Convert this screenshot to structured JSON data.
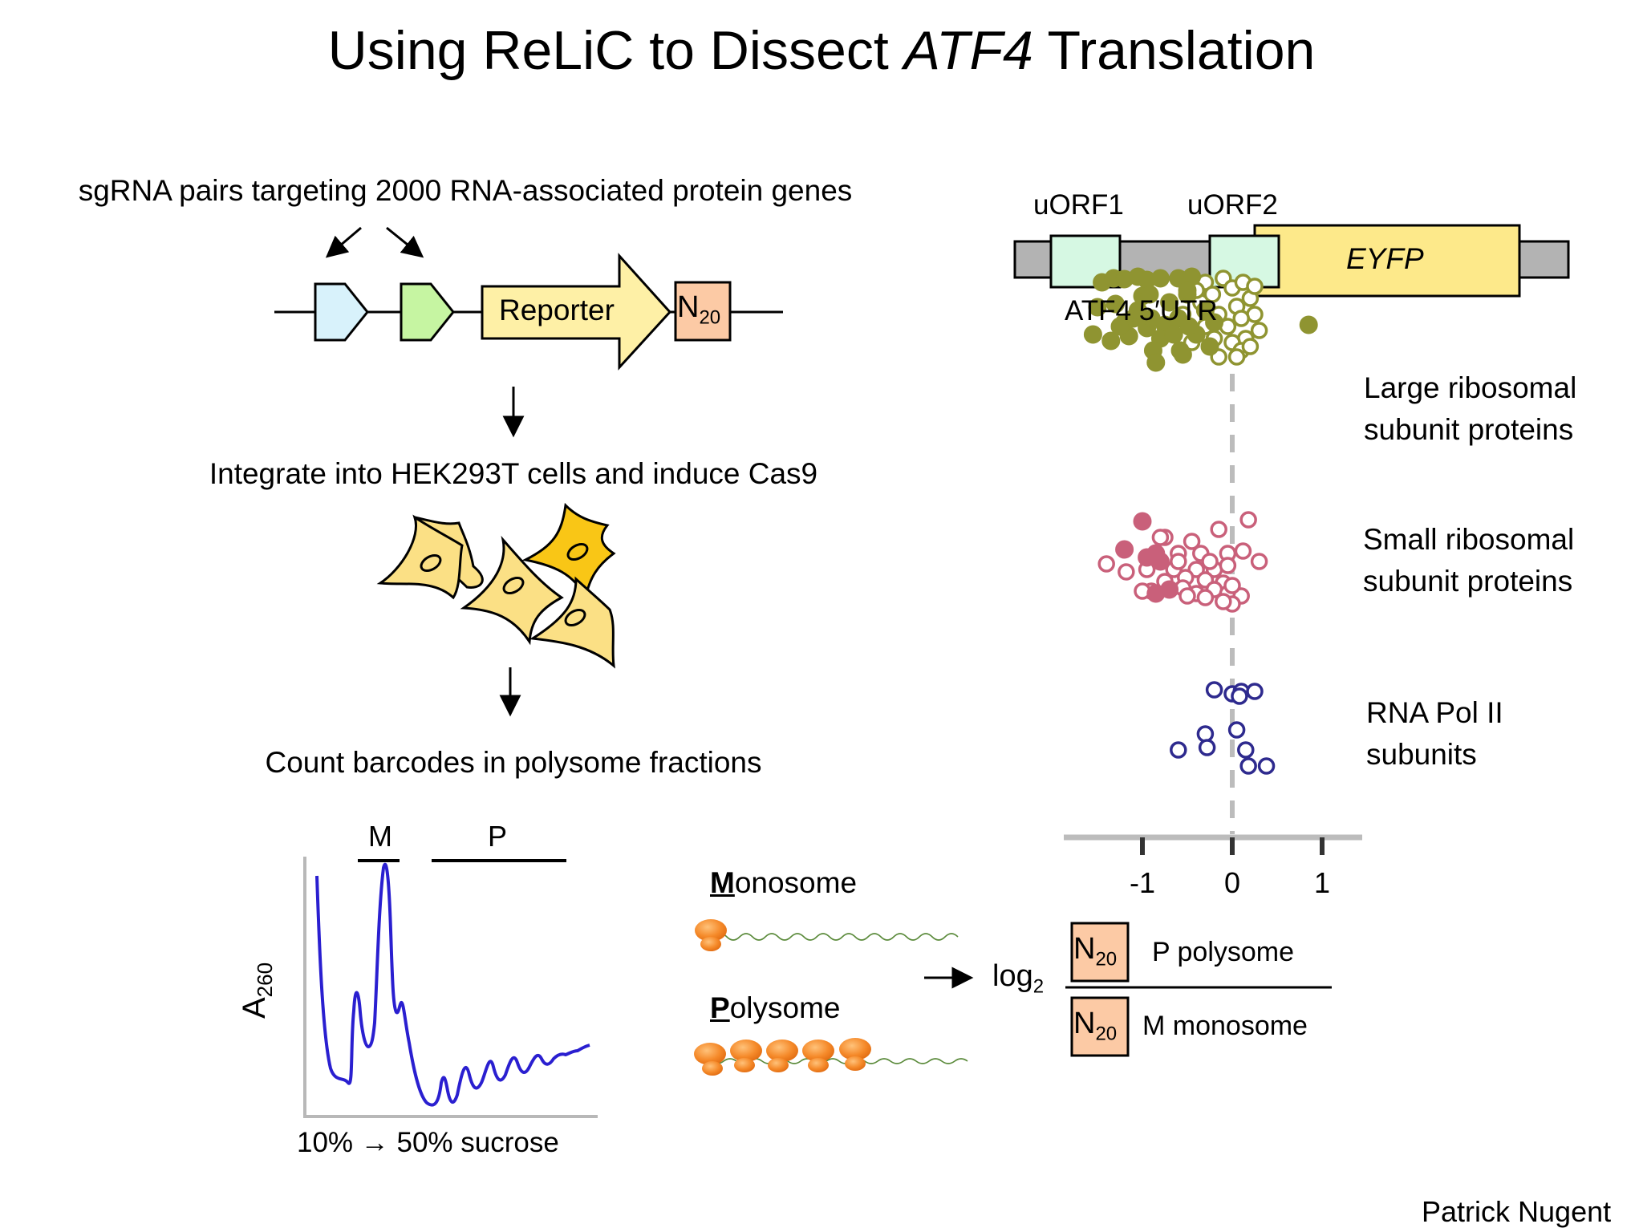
{
  "title": {
    "prefix": "Using ReLiC to Dissect ",
    "gene": "ATF4",
    "suffix": " Translation"
  },
  "steps": {
    "library": "sgRNA pairs targeting 2000 RNA-associated protein genes",
    "integrate": "Integrate into HEK293T cells and induce Cas9",
    "count": "Count barcodes in polysome fractions"
  },
  "construct": {
    "reporter": "Reporter",
    "barcode": "N",
    "barcode_sub": "20"
  },
  "profile": {
    "ylabel": "A",
    "ylabel_sub": "260",
    "xlabel": "10% → 50% sucrose",
    "monosome_mark": "M",
    "polysome_mark": "P",
    "trace_color": "#2a1fd0"
  },
  "fractions": {
    "monosome_initial": "M",
    "monosome_rest": "onosome",
    "polysome_initial": "P",
    "polysome_rest": "olysome"
  },
  "formula": {
    "log": "log",
    "log_sub": "2",
    "numerator": "P polysome",
    "denominator": "M monosome"
  },
  "utr": {
    "uorf1": "uORF1",
    "uorf2": "uORF2",
    "eyfp": "EYFP",
    "utr_label": "ATF4 5′UTR"
  },
  "chart_data": {
    "type": "scatter",
    "xlim": [
      -2.0,
      1.4
    ],
    "ticks": [
      -1,
      0,
      1
    ],
    "tick_labels": [
      "-1",
      "0",
      "1"
    ],
    "reference_line_x": 0,
    "series": [
      {
        "name": "Large ribosomal subunit proteins",
        "color": "#8f9431",
        "row_center_y": 397,
        "filled": [
          [
            -1.45,
            -45
          ],
          [
            -1.32,
            -50
          ],
          [
            -1.2,
            -49
          ],
          [
            -1.05,
            -52
          ],
          [
            -0.95,
            -48
          ],
          [
            -0.8,
            -50
          ],
          [
            -0.6,
            -50
          ],
          [
            -0.45,
            -52
          ],
          [
            -0.5,
            -30
          ],
          [
            -1.5,
            -14
          ],
          [
            -1.3,
            -18
          ],
          [
            -1.0,
            -28
          ],
          [
            -1.1,
            0
          ],
          [
            -0.95,
            12
          ],
          [
            -0.75,
            8
          ],
          [
            -0.6,
            0
          ],
          [
            -1.55,
            20
          ],
          [
            -1.35,
            28
          ],
          [
            -1.15,
            22
          ],
          [
            -0.8,
            25
          ],
          [
            -0.65,
            20
          ],
          [
            -0.88,
            40
          ],
          [
            -0.58,
            40
          ],
          [
            -0.92,
            -30
          ],
          [
            -1.2,
            5
          ],
          [
            -0.4,
            20
          ],
          [
            -0.3,
            -10
          ],
          [
            -0.2,
            5
          ],
          [
            -1.05,
            -10
          ],
          [
            -0.5,
            -35
          ],
          [
            -0.9,
            0
          ],
          [
            -0.7,
            -20
          ],
          [
            -0.25,
            35
          ],
          [
            -0.55,
            45
          ],
          [
            -0.85,
            55
          ],
          [
            -1.25,
            10
          ],
          [
            -0.48,
            10
          ],
          [
            0.85,
            8
          ]
        ],
        "open": [
          [
            -0.3,
            -45
          ],
          [
            -0.1,
            -50
          ],
          [
            0.0,
            -38
          ],
          [
            0.12,
            -45
          ],
          [
            -0.35,
            -20
          ],
          [
            -0.15,
            -5
          ],
          [
            0.05,
            -15
          ],
          [
            0.2,
            -25
          ],
          [
            0.25,
            -5
          ],
          [
            -0.55,
            -5
          ],
          [
            -0.3,
            10
          ],
          [
            -0.05,
            10
          ],
          [
            0.15,
            25
          ],
          [
            0.0,
            30
          ],
          [
            -0.2,
            25
          ],
          [
            -0.45,
            30
          ],
          [
            0.1,
            40
          ],
          [
            0.2,
            35
          ],
          [
            0.05,
            48
          ],
          [
            -0.15,
            48
          ],
          [
            -0.4,
            -35
          ],
          [
            0.25,
            -40
          ],
          [
            0.3,
            15
          ],
          [
            -0.22,
            -30
          ],
          [
            0.1,
            0
          ]
        ]
      },
      {
        "name": "Small ribosomal subunit proteins",
        "color": "#c9607a",
        "row_center_y": 705,
        "filled": [
          [
            -1.0,
            -55
          ],
          [
            -1.2,
            -20
          ],
          [
            -0.85,
            -15
          ],
          [
            -0.8,
            -5
          ],
          [
            -0.7,
            30
          ],
          [
            -0.85,
            35
          ],
          [
            -0.95,
            -10
          ]
        ],
        "open": [
          [
            -0.75,
            -35
          ],
          [
            -0.45,
            -30
          ],
          [
            -0.15,
            -45
          ],
          [
            0.18,
            -57
          ],
          [
            -0.6,
            -15
          ],
          [
            -0.35,
            -15
          ],
          [
            -0.05,
            -15
          ],
          [
            0.12,
            -18
          ],
          [
            0.3,
            -5
          ],
          [
            -1.4,
            -2
          ],
          [
            -1.18,
            8
          ],
          [
            -0.95,
            5
          ],
          [
            -0.65,
            5
          ],
          [
            -0.4,
            5
          ],
          [
            -0.2,
            5
          ],
          [
            -0.52,
            15
          ],
          [
            -0.3,
            18
          ],
          [
            -0.1,
            22
          ],
          [
            -0.75,
            20
          ],
          [
            -0.55,
            28
          ],
          [
            -0.4,
            35
          ],
          [
            -0.2,
            30
          ],
          [
            -0.05,
            35
          ],
          [
            0.1,
            38
          ],
          [
            -0.9,
            32
          ],
          [
            -0.5,
            38
          ],
          [
            -0.3,
            40
          ],
          [
            0.0,
            48
          ],
          [
            -1.0,
            32
          ],
          [
            -0.6,
            -5
          ],
          [
            -0.25,
            -5
          ],
          [
            -0.05,
            0
          ],
          [
            0.0,
            25
          ],
          [
            -0.1,
            45
          ],
          [
            -0.8,
            -35
          ]
        ]
      },
      {
        "name": "RNA Pol II subunits",
        "color": "#2e2a8e",
        "row_center_y": 910,
        "filled": [],
        "open": [
          [
            -0.2,
            -50
          ],
          [
            0.0,
            -45
          ],
          [
            0.1,
            -48
          ],
          [
            0.25,
            -48
          ],
          [
            0.08,
            -42
          ],
          [
            -0.3,
            5
          ],
          [
            0.05,
            0
          ],
          [
            -0.6,
            25
          ],
          [
            -0.28,
            22
          ],
          [
            0.15,
            25
          ],
          [
            0.18,
            45
          ],
          [
            0.38,
            45
          ]
        ]
      }
    ]
  },
  "labels": {
    "large1": "Large ribosomal",
    "large2": "subunit proteins",
    "small1": "Small ribosomal",
    "small2": "subunit proteins",
    "pol1": "RNA Pol II",
    "pol2": "subunits"
  },
  "credit": "Patrick Nugent"
}
